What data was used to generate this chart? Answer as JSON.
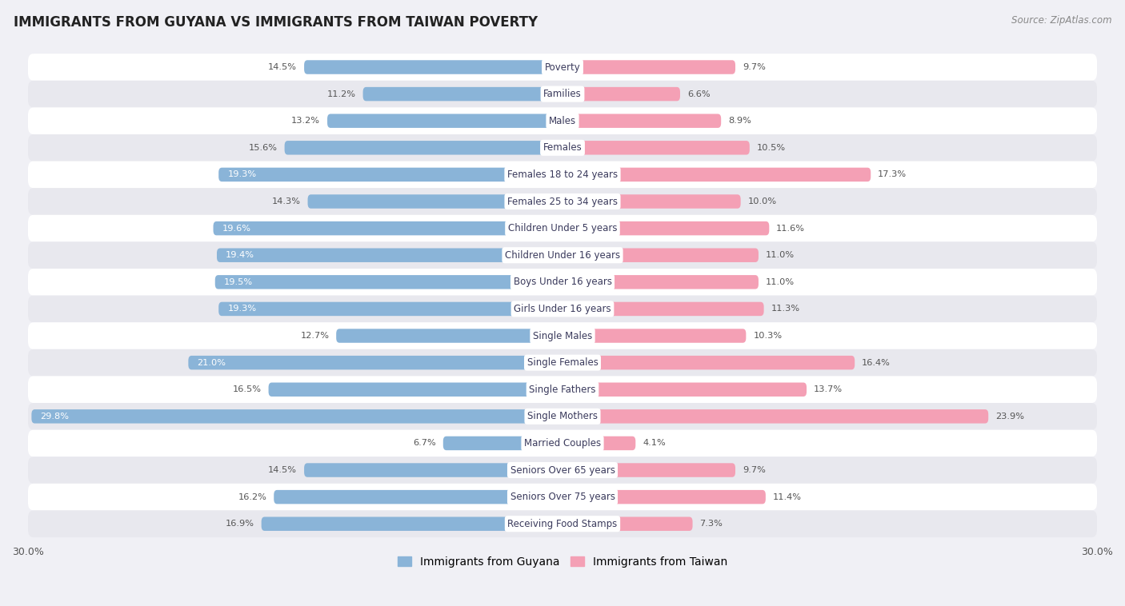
{
  "title": "IMMIGRANTS FROM GUYANA VS IMMIGRANTS FROM TAIWAN POVERTY",
  "source": "Source: ZipAtlas.com",
  "categories": [
    "Poverty",
    "Families",
    "Males",
    "Females",
    "Females 18 to 24 years",
    "Females 25 to 34 years",
    "Children Under 5 years",
    "Children Under 16 years",
    "Boys Under 16 years",
    "Girls Under 16 years",
    "Single Males",
    "Single Females",
    "Single Fathers",
    "Single Mothers",
    "Married Couples",
    "Seniors Over 65 years",
    "Seniors Over 75 years",
    "Receiving Food Stamps"
  ],
  "guyana_values": [
    14.5,
    11.2,
    13.2,
    15.6,
    19.3,
    14.3,
    19.6,
    19.4,
    19.5,
    19.3,
    12.7,
    21.0,
    16.5,
    29.8,
    6.7,
    14.5,
    16.2,
    16.9
  ],
  "taiwan_values": [
    9.7,
    6.6,
    8.9,
    10.5,
    17.3,
    10.0,
    11.6,
    11.0,
    11.0,
    11.3,
    10.3,
    16.4,
    13.7,
    23.9,
    4.1,
    9.7,
    11.4,
    7.3
  ],
  "guyana_color": "#8ab4d8",
  "taiwan_color": "#f4a0b5",
  "guyana_label": "Immigrants from Guyana",
  "taiwan_label": "Immigrants from Taiwan",
  "xlim": 30.0,
  "bg_color": "#f0f0f5",
  "row_color_even": "#ffffff",
  "row_color_odd": "#e8e8ee",
  "label_bg": "#ffffff",
  "label_text_color": "#3a3a5c",
  "value_text_color": "#555555",
  "title_color": "#222222",
  "source_color": "#888888"
}
